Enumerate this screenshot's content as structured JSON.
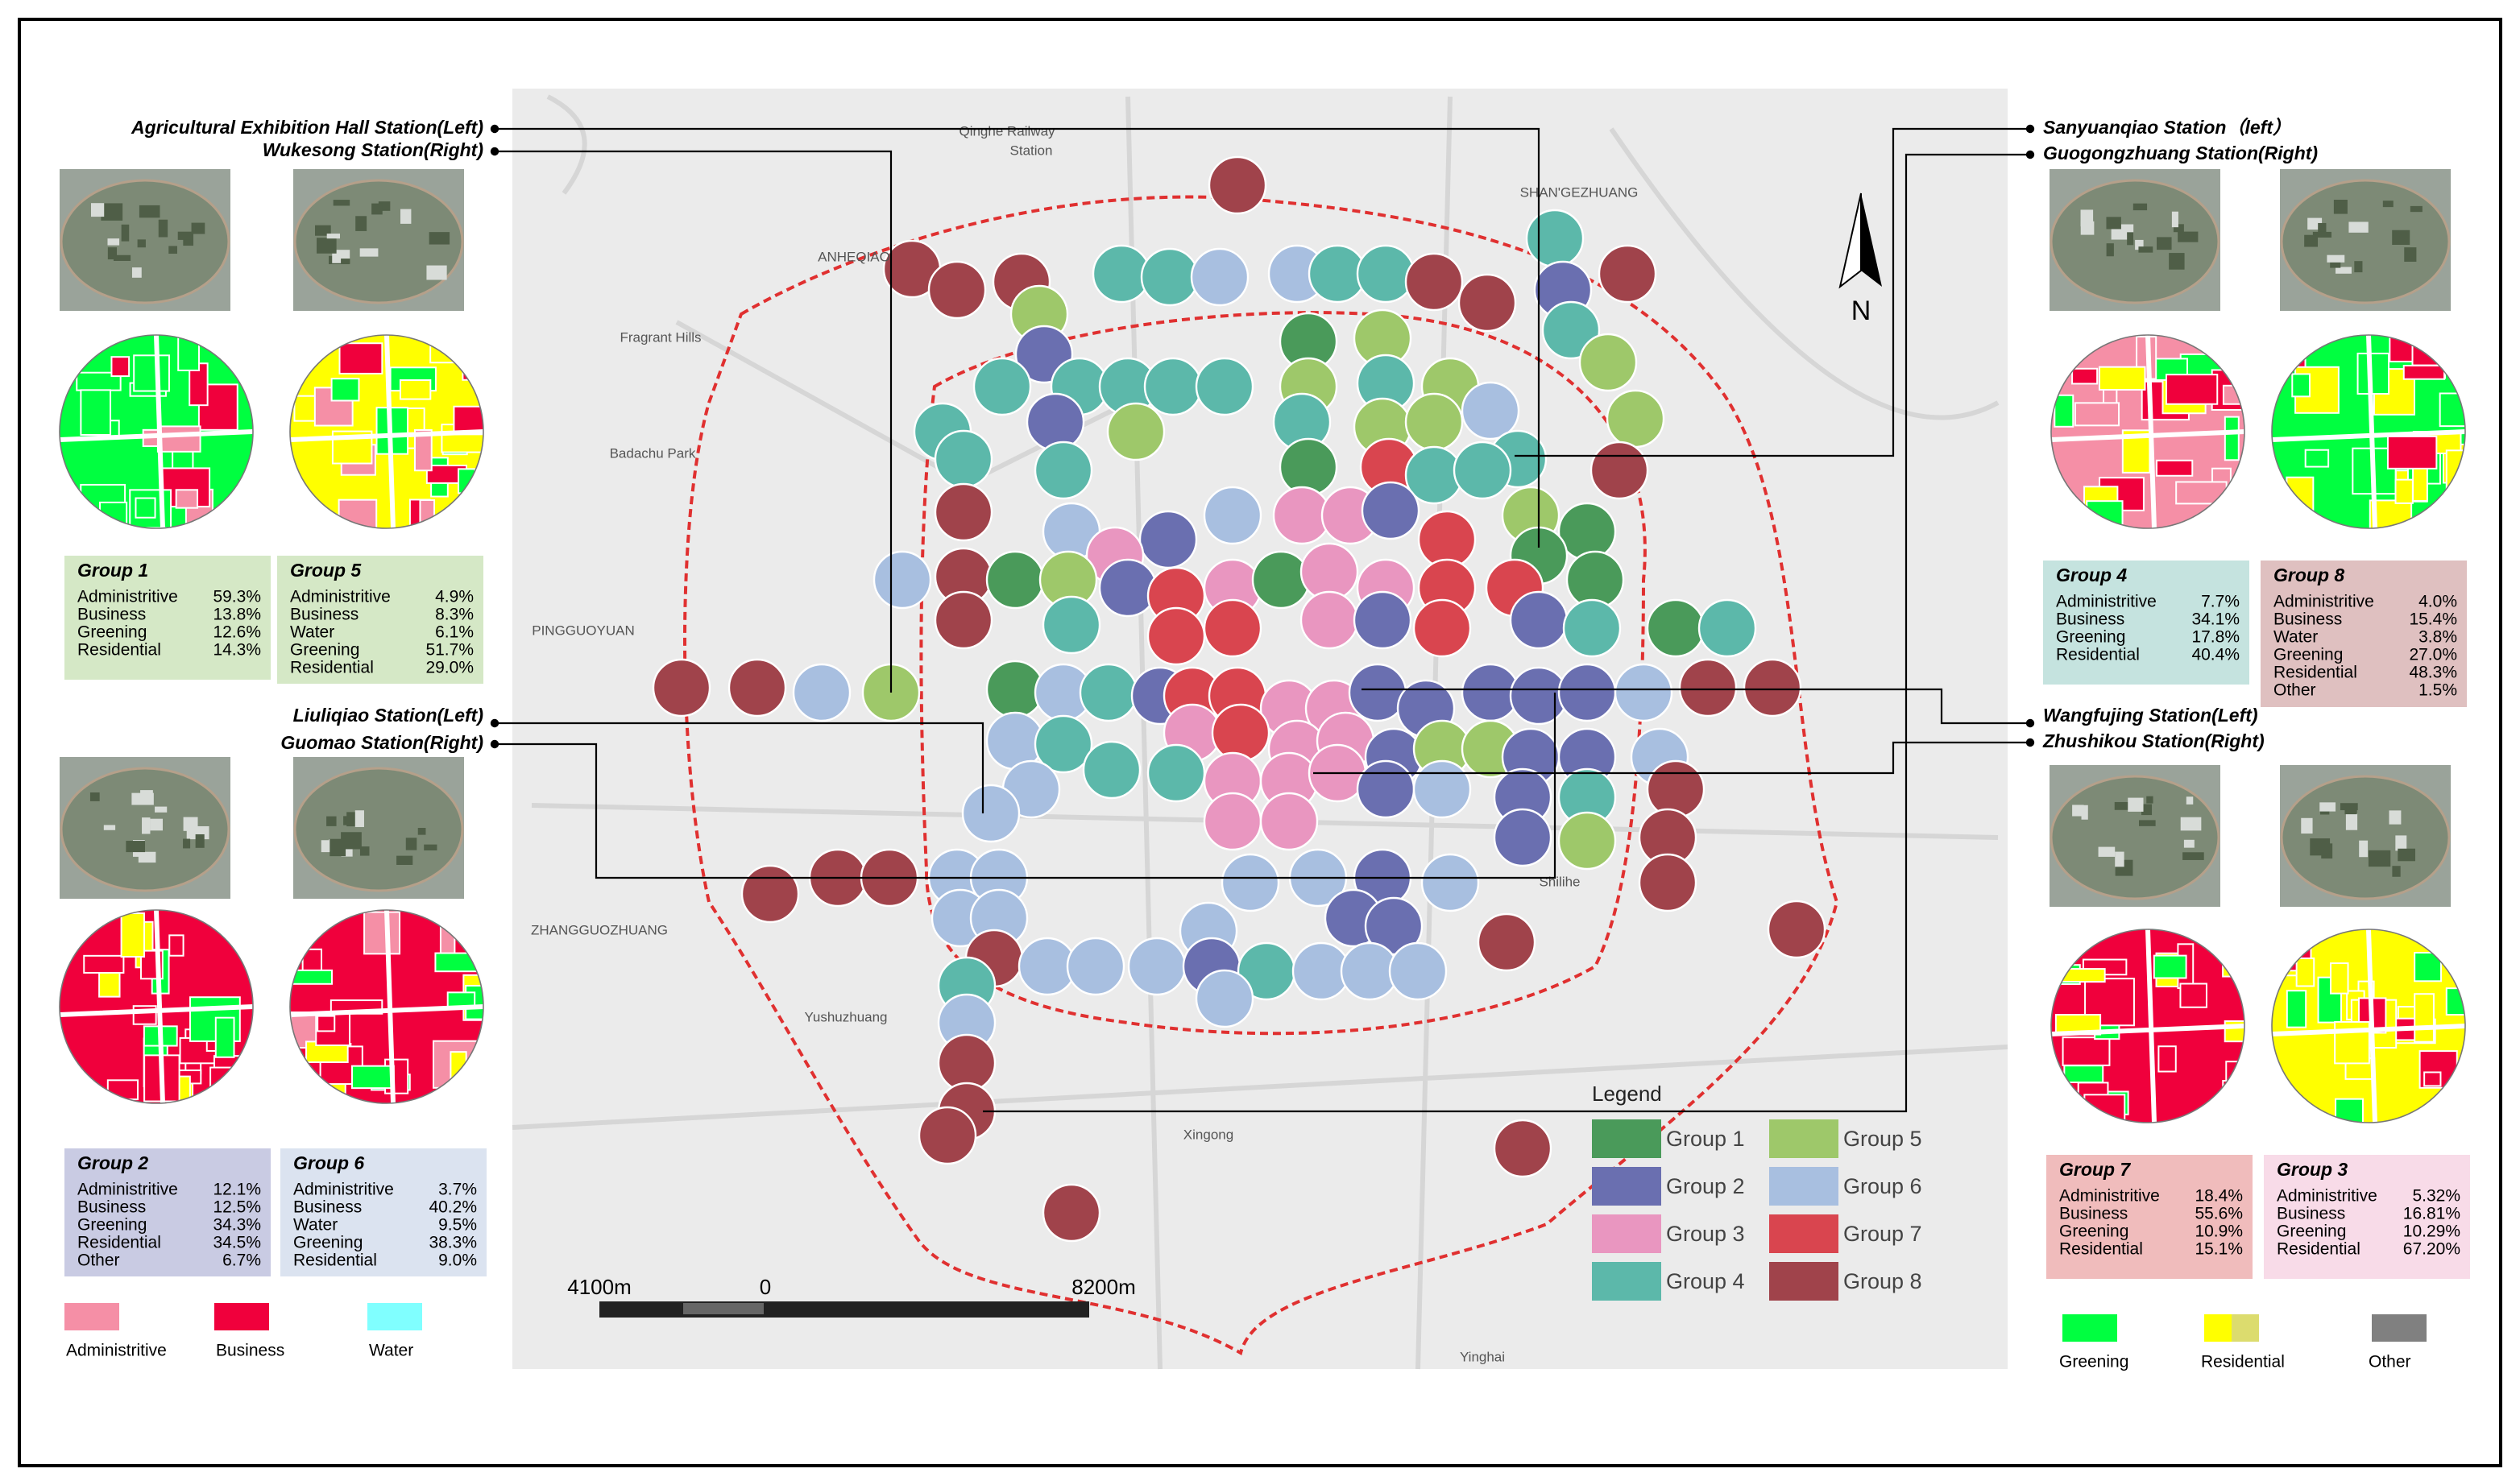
{
  "stations": {
    "left": [
      "Agricultural Exhibition Hall Station(Left)",
      "Wukesong Station(Right)",
      "Liuliqiao Station(Left)",
      "Guomao Station(Right)"
    ],
    "right": [
      "Sanyuanqiao Station（left）",
      "Guogongzhuang Station(Right)",
      "Wangfujing Station(Left)",
      "Zhushikou Station(Right)"
    ]
  },
  "groups": [
    {
      "title": "Group 1",
      "rows": [
        [
          "Administritive",
          "59.3%"
        ],
        [
          "Business",
          "13.8%"
        ],
        [
          "Greening",
          "12.6%"
        ],
        [
          "Residential",
          "14.3%"
        ]
      ]
    },
    {
      "title": "Group 5",
      "rows": [
        [
          "Administritive",
          "4.9%"
        ],
        [
          "Business",
          "8.3%"
        ],
        [
          "Water",
          "6.1%"
        ],
        [
          "Greening",
          "51.7%"
        ],
        [
          "Residential",
          "29.0%"
        ]
      ]
    },
    {
      "title": "Group 2",
      "rows": [
        [
          "Administritive",
          "12.1%"
        ],
        [
          "Business",
          "12.5%"
        ],
        [
          "Greening",
          "34.3%"
        ],
        [
          "Residential",
          "34.5%"
        ],
        [
          "Other",
          "6.7%"
        ]
      ]
    },
    {
      "title": "Group 6",
      "rows": [
        [
          "Administritive",
          "3.7%"
        ],
        [
          "Business",
          "40.2%"
        ],
        [
          "Water",
          "9.5%"
        ],
        [
          "Greening",
          "38.3%"
        ],
        [
          "Residential",
          "9.0%"
        ]
      ]
    },
    {
      "title": "Group 4",
      "rows": [
        [
          "Administritive",
          "7.7%"
        ],
        [
          "Business",
          "34.1%"
        ],
        [
          "Greening",
          "17.8%"
        ],
        [
          "Residential",
          "40.4%"
        ]
      ]
    },
    {
      "title": "Group 8",
      "rows": [
        [
          "Administritive",
          "4.0%"
        ],
        [
          "Business",
          "15.4%"
        ],
        [
          "Water",
          "3.8%"
        ],
        [
          "Greening",
          "27.0%"
        ],
        [
          "Residential",
          "48.3%"
        ],
        [
          "Other",
          "1.5%"
        ]
      ]
    },
    {
      "title": "Group 7",
      "rows": [
        [
          "Administritive",
          "18.4%"
        ],
        [
          "Business",
          "55.6%"
        ],
        [
          "Greening",
          "10.9%"
        ],
        [
          "Residential",
          "15.1%"
        ]
      ]
    },
    {
      "title": "Group 3",
      "rows": [
        [
          "Administritive",
          "5.32%"
        ],
        [
          "Business",
          "16.81%"
        ],
        [
          "Greening",
          "10.29%"
        ],
        [
          "Residential",
          "67.20%"
        ]
      ]
    }
  ],
  "land_use": [
    {
      "name": "Administritive",
      "color": "#f58fa6"
    },
    {
      "name": "Business",
      "color": "#f0003c"
    },
    {
      "name": "Water",
      "color": "#80ffff"
    },
    {
      "name": "Greening",
      "color": "#00ff40"
    },
    {
      "name": "Residential",
      "color": "#ffff00"
    },
    {
      "name": "Other",
      "color": "#808080"
    }
  ],
  "legend": {
    "title": "Legend",
    "items": [
      {
        "name": "Group 1",
        "color": "#4a9a5a"
      },
      {
        "name": "Group 2",
        "color": "#6a6fb0"
      },
      {
        "name": "Group 3",
        "color": "#e996c0"
      },
      {
        "name": "Group 4",
        "color": "#5cb8aa"
      },
      {
        "name": "Group 5",
        "color": "#9ec86a"
      },
      {
        "name": "Group 6",
        "color": "#a8bfe0"
      },
      {
        "name": "Group 7",
        "color": "#d9454f"
      },
      {
        "name": "Group 8",
        "color": "#a0434b"
      }
    ]
  },
  "scale": {
    "labels": [
      "4100m",
      "0",
      "8200m"
    ]
  },
  "north": "N",
  "map_labels": [
    "Qinghe Railway",
    "Station",
    "ANHEQIAO",
    "Fragrant Hills",
    "Badachu Park",
    "PINGGUOYUAN",
    "ZHANGGUOZHUANG",
    "Yushuzhuang",
    "Xingong",
    "Yinghai",
    "SHAN'GEZHUANG",
    "Shilihe"
  ]
}
